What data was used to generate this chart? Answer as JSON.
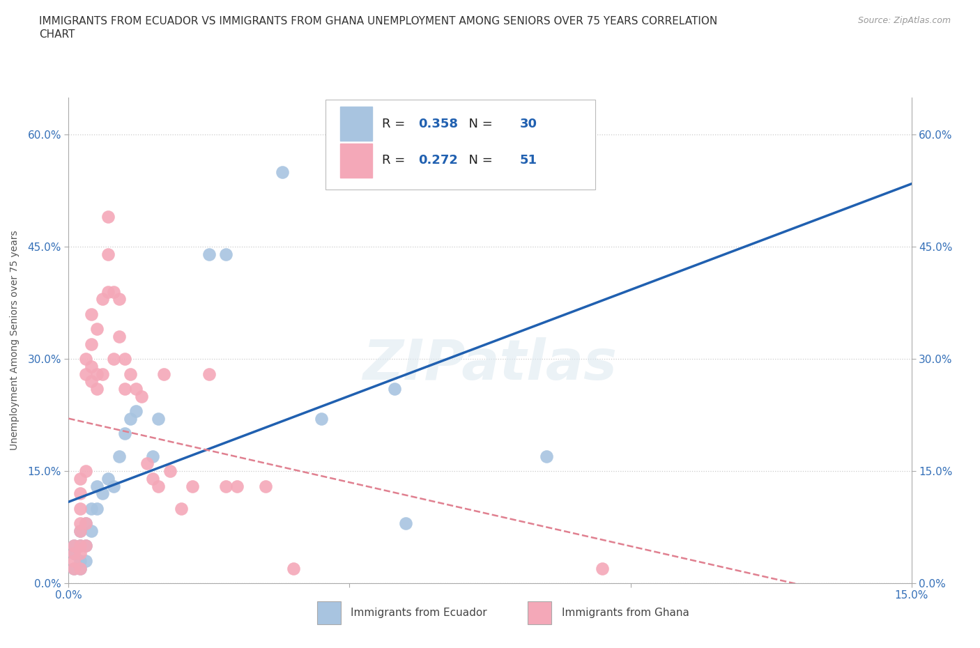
{
  "title_line1": "IMMIGRANTS FROM ECUADOR VS IMMIGRANTS FROM GHANA UNEMPLOYMENT AMONG SENIORS OVER 75 YEARS CORRELATION",
  "title_line2": "CHART",
  "source": "Source: ZipAtlas.com",
  "ylabel": "Unemployment Among Seniors over 75 years",
  "xlim": [
    0.0,
    0.15
  ],
  "ylim": [
    0.0,
    0.65
  ],
  "xticks": [
    0.0,
    0.05,
    0.1,
    0.15
  ],
  "yticks": [
    0.0,
    0.15,
    0.3,
    0.45,
    0.6
  ],
  "xtick_labels": [
    "0.0%",
    "",
    "",
    "15.0%"
  ],
  "ytick_labels_left": [
    "0.0%",
    "15.0%",
    "30.0%",
    "45.0%",
    "60.0%"
  ],
  "ytick_labels_right": [
    "0.0%",
    "15.0%",
    "30.0%",
    "45.0%",
    "60.0%"
  ],
  "ecuador_color": "#a8c4e0",
  "ghana_color": "#f4a8b8",
  "ecuador_R": 0.358,
  "ecuador_N": 30,
  "ghana_R": 0.272,
  "ghana_N": 51,
  "ecuador_line_color": "#2060b0",
  "ghana_line_color": "#e08090",
  "watermark": "ZIPatlas",
  "ecuador_points": [
    [
      0.001,
      0.02
    ],
    [
      0.001,
      0.04
    ],
    [
      0.001,
      0.05
    ],
    [
      0.002,
      0.02
    ],
    [
      0.002,
      0.03
    ],
    [
      0.002,
      0.05
    ],
    [
      0.002,
      0.07
    ],
    [
      0.003,
      0.03
    ],
    [
      0.003,
      0.05
    ],
    [
      0.003,
      0.08
    ],
    [
      0.004,
      0.07
    ],
    [
      0.004,
      0.1
    ],
    [
      0.005,
      0.1
    ],
    [
      0.005,
      0.13
    ],
    [
      0.006,
      0.12
    ],
    [
      0.007,
      0.14
    ],
    [
      0.008,
      0.13
    ],
    [
      0.009,
      0.17
    ],
    [
      0.01,
      0.2
    ],
    [
      0.011,
      0.22
    ],
    [
      0.012,
      0.23
    ],
    [
      0.015,
      0.17
    ],
    [
      0.016,
      0.22
    ],
    [
      0.025,
      0.44
    ],
    [
      0.028,
      0.44
    ],
    [
      0.038,
      0.55
    ],
    [
      0.045,
      0.22
    ],
    [
      0.058,
      0.26
    ],
    [
      0.06,
      0.08
    ],
    [
      0.085,
      0.17
    ]
  ],
  "ghana_points": [
    [
      0.001,
      0.02
    ],
    [
      0.001,
      0.03
    ],
    [
      0.001,
      0.04
    ],
    [
      0.001,
      0.05
    ],
    [
      0.002,
      0.02
    ],
    [
      0.002,
      0.04
    ],
    [
      0.002,
      0.05
    ],
    [
      0.002,
      0.07
    ],
    [
      0.002,
      0.08
    ],
    [
      0.002,
      0.1
    ],
    [
      0.002,
      0.12
    ],
    [
      0.002,
      0.14
    ],
    [
      0.003,
      0.05
    ],
    [
      0.003,
      0.08
    ],
    [
      0.003,
      0.15
    ],
    [
      0.003,
      0.28
    ],
    [
      0.003,
      0.3
    ],
    [
      0.004,
      0.27
    ],
    [
      0.004,
      0.29
    ],
    [
      0.004,
      0.32
    ],
    [
      0.004,
      0.36
    ],
    [
      0.005,
      0.26
    ],
    [
      0.005,
      0.28
    ],
    [
      0.005,
      0.34
    ],
    [
      0.006,
      0.28
    ],
    [
      0.006,
      0.38
    ],
    [
      0.007,
      0.39
    ],
    [
      0.007,
      0.44
    ],
    [
      0.007,
      0.49
    ],
    [
      0.008,
      0.3
    ],
    [
      0.008,
      0.39
    ],
    [
      0.009,
      0.33
    ],
    [
      0.009,
      0.38
    ],
    [
      0.01,
      0.26
    ],
    [
      0.01,
      0.3
    ],
    [
      0.011,
      0.28
    ],
    [
      0.012,
      0.26
    ],
    [
      0.013,
      0.25
    ],
    [
      0.014,
      0.16
    ],
    [
      0.015,
      0.14
    ],
    [
      0.016,
      0.13
    ],
    [
      0.017,
      0.28
    ],
    [
      0.018,
      0.15
    ],
    [
      0.02,
      0.1
    ],
    [
      0.022,
      0.13
    ],
    [
      0.025,
      0.28
    ],
    [
      0.028,
      0.13
    ],
    [
      0.03,
      0.13
    ],
    [
      0.035,
      0.13
    ],
    [
      0.04,
      0.02
    ],
    [
      0.095,
      0.02
    ]
  ]
}
